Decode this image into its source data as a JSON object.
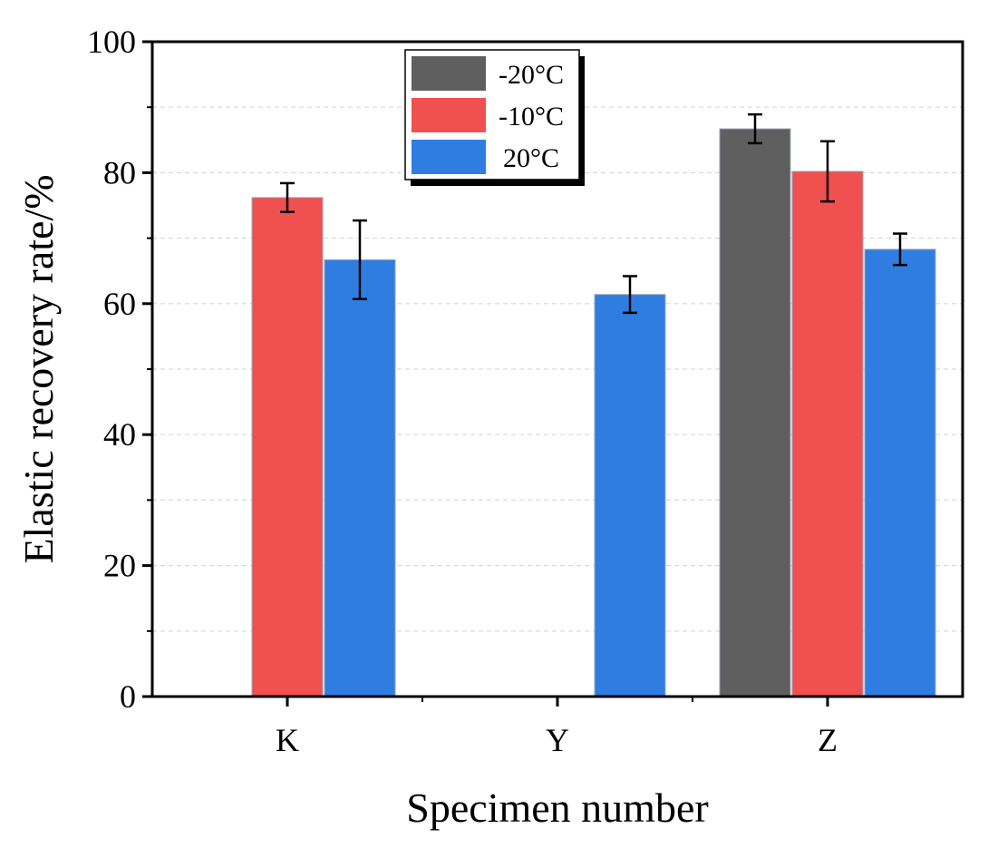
{
  "chart_data": {
    "type": "bar",
    "title": "",
    "xlabel": "Specimen number",
    "ylabel": "Elastic recovery rate/%",
    "ylim": [
      0,
      100
    ],
    "yticks": [
      0,
      20,
      40,
      60,
      80,
      100
    ],
    "categories": [
      "K",
      "Y",
      "Z"
    ],
    "series": [
      {
        "name": "-20°C",
        "color": "#5f5f5f",
        "values": [
          null,
          null,
          86.7
        ],
        "errors": [
          null,
          null,
          2.2
        ]
      },
      {
        "name": "-10°C",
        "color": "#f05050",
        "values": [
          76.2,
          null,
          80.2
        ],
        "errors": [
          2.2,
          null,
          4.6
        ]
      },
      {
        "name": "20°C",
        "color": "#2f7de1",
        "values": [
          66.7,
          61.4,
          68.3
        ],
        "errors": [
          6.0,
          2.8,
          2.4
        ]
      }
    ],
    "grid": true,
    "legend": {
      "position": "top-center"
    }
  }
}
